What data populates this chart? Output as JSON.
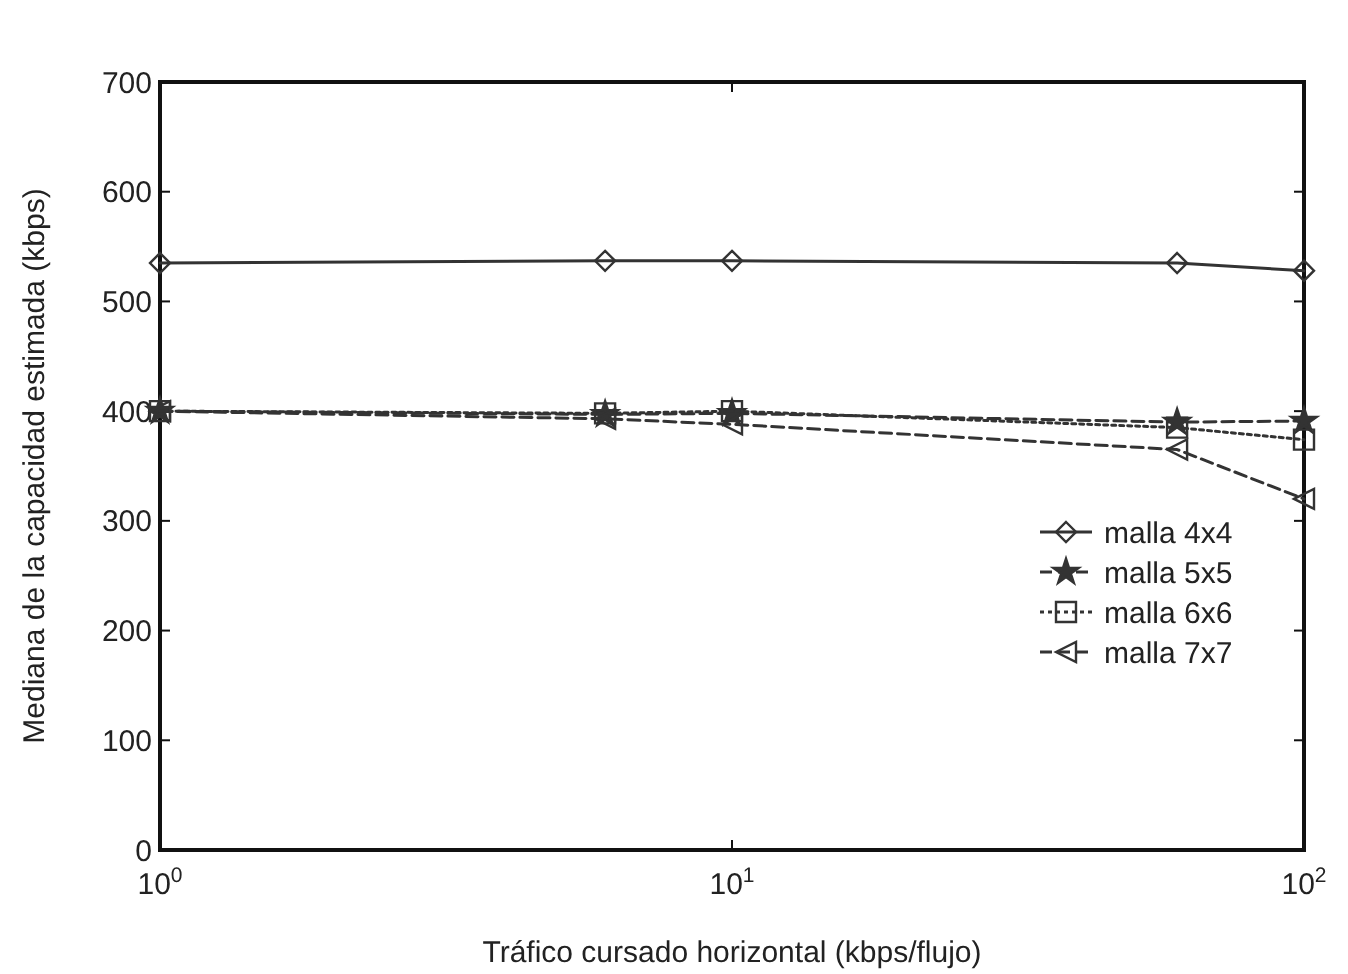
{
  "chart_data": {
    "type": "line",
    "xlabel": "Tráfico cursado horizontal (kbps/flujo)",
    "ylabel": "Mediana de la capacidad estimada (kbps)",
    "x": [
      1,
      6,
      10,
      60,
      100
    ],
    "log": "x",
    "xlim": [
      1,
      100
    ],
    "xticks": [
      {
        "value": 1,
        "label": "10$^{0}$"
      },
      {
        "value": 10,
        "label": "10$^{1}$"
      },
      {
        "value": 100,
        "label": "10$^{2}$"
      }
    ],
    "ylim": [
      0,
      700
    ],
    "yticks": [
      0,
      100,
      200,
      300,
      400,
      500,
      600,
      700
    ],
    "series": [
      {
        "name": "malla 4x4",
        "color": "#333333",
        "marker": "diamond",
        "line_style": "solid",
        "values": [
          535,
          537,
          537,
          535,
          528
        ]
      },
      {
        "name": "malla 5x5",
        "color": "#333333",
        "marker": "star",
        "line_style": "dashed",
        "values": [
          400,
          397,
          398,
          390,
          391
        ]
      },
      {
        "name": "malla 6x6",
        "color": "#333333",
        "marker": "square",
        "line_style": "dotted",
        "values": [
          400,
          398,
          400,
          385,
          374
        ]
      },
      {
        "name": "malla 7x7",
        "color": "#333333",
        "marker": "triangle",
        "line_style": "dashed",
        "values": [
          400,
          393,
          388,
          365,
          320
        ]
      }
    ],
    "legend": "bottom right",
    "grid": false
  }
}
